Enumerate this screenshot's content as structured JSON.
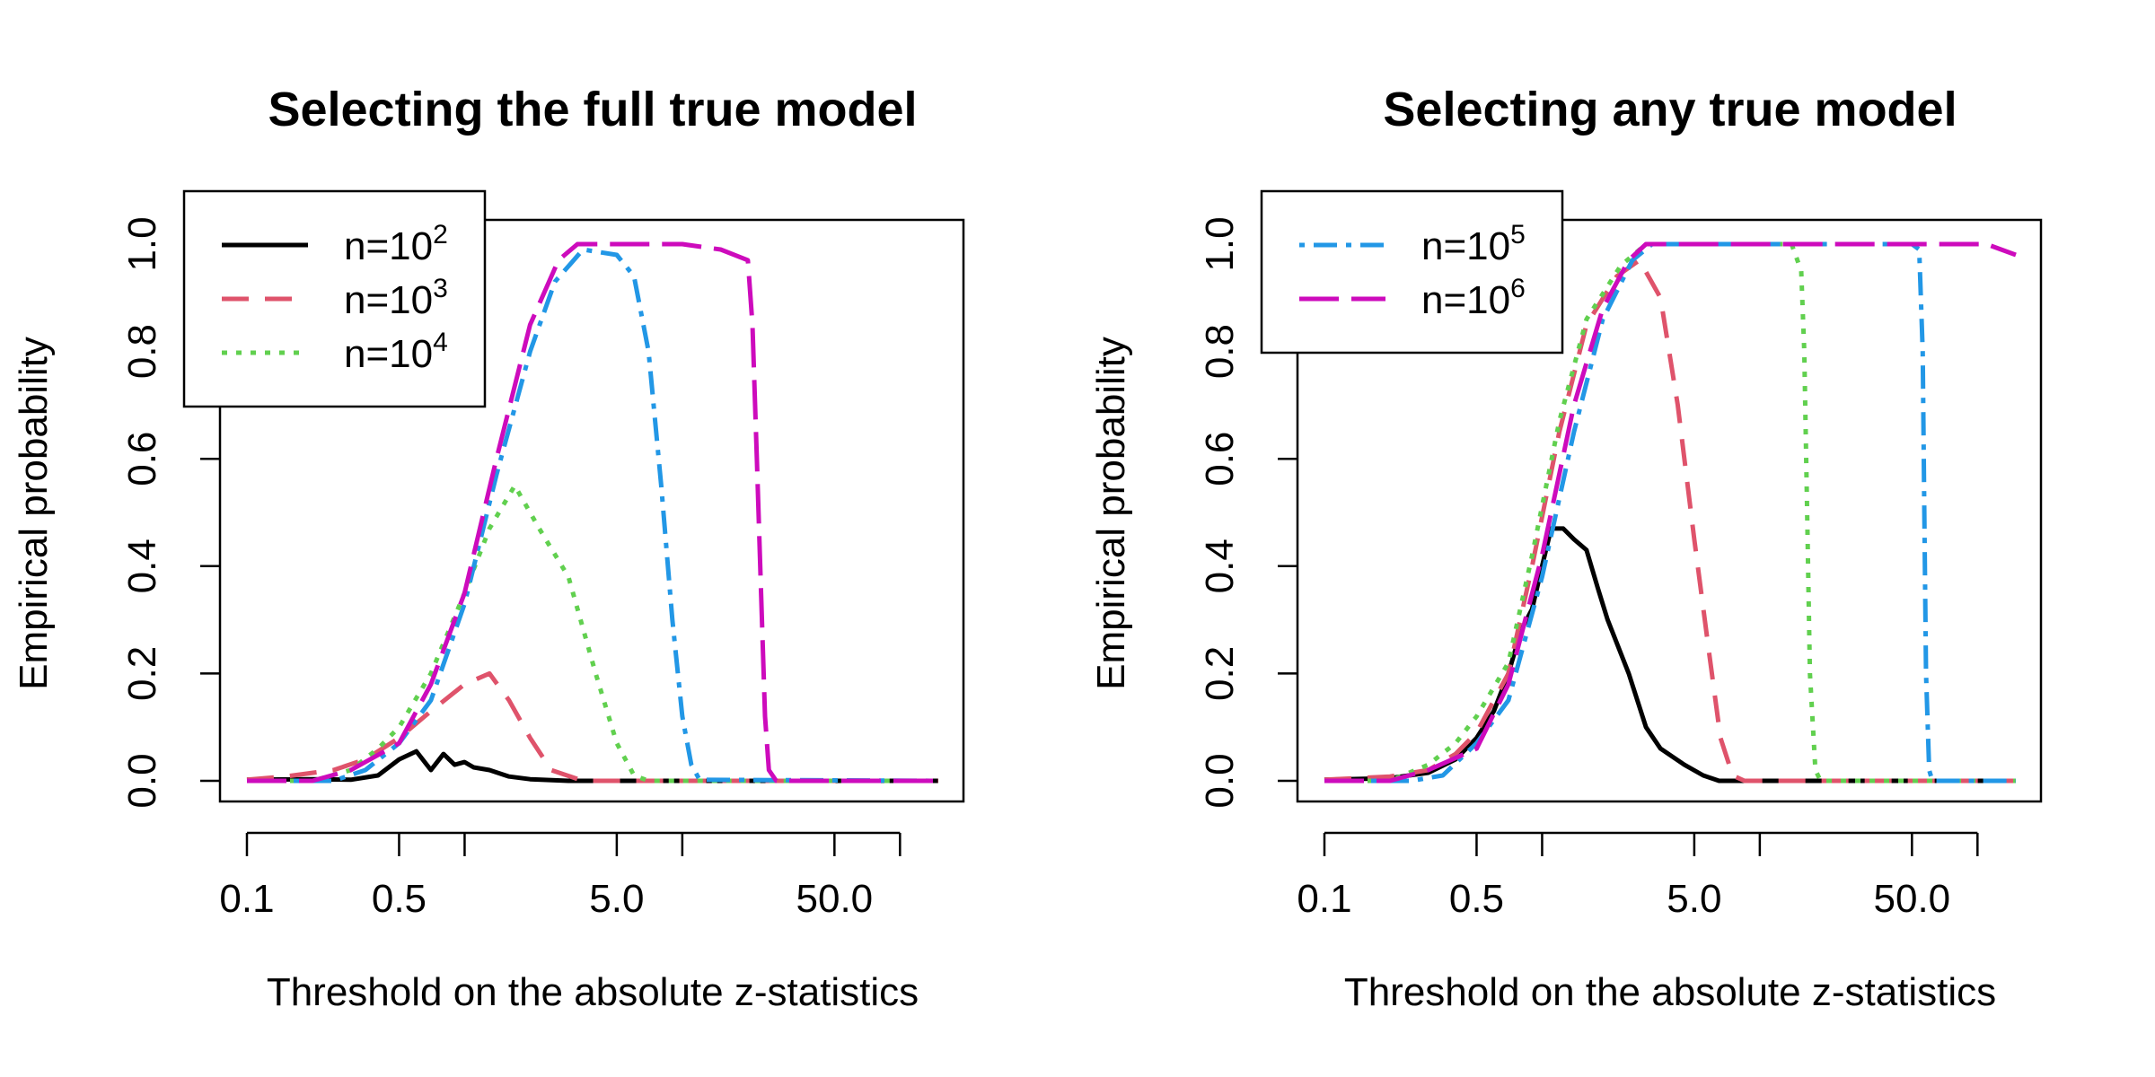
{
  "chart_data": [
    {
      "type": "line",
      "title": "Selecting the full true model",
      "xlabel": "Threshold on the absolute z-statistics",
      "ylabel": "Empirical probability",
      "xscale": "log",
      "xlim": [
        0.1,
        150
      ],
      "ylim": [
        0,
        1
      ],
      "xticks": [
        0.1,
        0.5,
        1,
        5,
        10,
        50,
        100
      ],
      "xtick_labels": [
        "0.1",
        "0.5",
        "",
        "5.0",
        "",
        "50.0",
        ""
      ],
      "yticks": [
        0,
        0.2,
        0.4,
        0.6,
        0.8,
        1.0
      ],
      "ytick_labels": [
        "0.0",
        "0.2",
        "0.4",
        "0.6",
        "0.8",
        "1.0"
      ],
      "legend": {
        "position": "top-left",
        "entries": [
          {
            "base": "n=10",
            "exp": "2",
            "series": "n=10^2"
          },
          {
            "base": "n=10",
            "exp": "3",
            "series": "n=10^3"
          },
          {
            "base": "n=10",
            "exp": "4",
            "series": "n=10^4"
          }
        ]
      },
      "series": [
        {
          "name": "n=10^2",
          "color": "#000000",
          "style": "solid",
          "points": [
            [
              0.1,
              0.002
            ],
            [
              0.2,
              0.003
            ],
            [
              0.3,
              0.002
            ],
            [
              0.4,
              0.01
            ],
            [
              0.5,
              0.04
            ],
            [
              0.6,
              0.055
            ],
            [
              0.7,
              0.02
            ],
            [
              0.8,
              0.05
            ],
            [
              0.9,
              0.03
            ],
            [
              1.0,
              0.035
            ],
            [
              1.1,
              0.025
            ],
            [
              1.3,
              0.02
            ],
            [
              1.6,
              0.008
            ],
            [
              2.0,
              0.003
            ],
            [
              3.0,
              0
            ],
            [
              150,
              0
            ]
          ]
        },
        {
          "name": "n=10^3",
          "color": "#DF536B",
          "style": "dashed",
          "points": [
            [
              0.1,
              0.002
            ],
            [
              0.15,
              0.008
            ],
            [
              0.25,
              0.02
            ],
            [
              0.35,
              0.04
            ],
            [
              0.5,
              0.08
            ],
            [
              0.7,
              0.13
            ],
            [
              1.0,
              0.18
            ],
            [
              1.3,
              0.2
            ],
            [
              1.6,
              0.15
            ],
            [
              2.0,
              0.08
            ],
            [
              2.5,
              0.02
            ],
            [
              3.5,
              0
            ],
            [
              150,
              0
            ]
          ]
        },
        {
          "name": "n=10^4",
          "color": "#61D04F",
          "style": "dotted",
          "points": [
            [
              0.1,
              0
            ],
            [
              0.2,
              0
            ],
            [
              0.3,
              0.02
            ],
            [
              0.4,
              0.06
            ],
            [
              0.5,
              0.1
            ],
            [
              0.7,
              0.2
            ],
            [
              1.0,
              0.35
            ],
            [
              1.3,
              0.47
            ],
            [
              1.7,
              0.55
            ],
            [
              2.2,
              0.47
            ],
            [
              3.0,
              0.38
            ],
            [
              4.0,
              0.2
            ],
            [
              5.0,
              0.07
            ],
            [
              6.0,
              0.01
            ],
            [
              7.0,
              0
            ],
            [
              150,
              0
            ]
          ]
        },
        {
          "name": "n=10^5",
          "color": "#2297E6",
          "style": "dotdash",
          "points": [
            [
              0.1,
              0
            ],
            [
              0.25,
              0
            ],
            [
              0.35,
              0.02
            ],
            [
              0.5,
              0.07
            ],
            [
              0.7,
              0.15
            ],
            [
              1.0,
              0.33
            ],
            [
              1.4,
              0.57
            ],
            [
              2.0,
              0.8
            ],
            [
              2.6,
              0.93
            ],
            [
              3.5,
              0.99
            ],
            [
              5.0,
              0.98
            ],
            [
              6.0,
              0.94
            ],
            [
              7.0,
              0.8
            ],
            [
              8.0,
              0.55
            ],
            [
              9.0,
              0.3
            ],
            [
              10.0,
              0.12
            ],
            [
              11.0,
              0.03
            ],
            [
              12.0,
              0.002
            ],
            [
              150,
              0
            ]
          ]
        },
        {
          "name": "n=10^6",
          "color": "#CD0BBC",
          "style": "longdash",
          "points": [
            [
              0.1,
              0
            ],
            [
              0.2,
              0
            ],
            [
              0.3,
              0.02
            ],
            [
              0.5,
              0.07
            ],
            [
              0.7,
              0.18
            ],
            [
              1.0,
              0.35
            ],
            [
              1.4,
              0.6
            ],
            [
              2.0,
              0.85
            ],
            [
              2.7,
              0.97
            ],
            [
              3.3,
              1.0
            ],
            [
              10,
              1.0
            ],
            [
              15,
              0.99
            ],
            [
              20,
              0.97
            ],
            [
              21,
              0.85
            ],
            [
              22,
              0.6
            ],
            [
              23,
              0.35
            ],
            [
              24,
              0.12
            ],
            [
              25,
              0.02
            ],
            [
              27,
              0
            ],
            [
              150,
              0
            ]
          ]
        }
      ]
    },
    {
      "type": "line",
      "title": "Selecting any true model",
      "xlabel": "Threshold on the absolute z-statistics",
      "ylabel": "Empirical probability",
      "xscale": "log",
      "xlim": [
        0.1,
        150
      ],
      "ylim": [
        0,
        1
      ],
      "xticks": [
        0.1,
        0.5,
        1,
        5,
        10,
        50,
        100
      ],
      "xtick_labels": [
        "0.1",
        "0.5",
        "",
        "5.0",
        "",
        "50.0",
        ""
      ],
      "yticks": [
        0,
        0.2,
        0.4,
        0.6,
        0.8,
        1.0
      ],
      "ytick_labels": [
        "0.0",
        "0.2",
        "0.4",
        "0.6",
        "0.8",
        "1.0"
      ],
      "legend": {
        "position": "top-left",
        "entries": [
          {
            "base": "n=10",
            "exp": "5",
            "series": "n=10^5"
          },
          {
            "base": "n=10",
            "exp": "6",
            "series": "n=10^6"
          }
        ]
      },
      "series": [
        {
          "name": "n=10^2",
          "color": "#000000",
          "style": "solid",
          "points": [
            [
              0.1,
              0.002
            ],
            [
              0.2,
              0.005
            ],
            [
              0.3,
              0.015
            ],
            [
              0.4,
              0.04
            ],
            [
              0.5,
              0.08
            ],
            [
              0.6,
              0.13
            ],
            [
              0.7,
              0.2
            ],
            [
              0.8,
              0.28
            ],
            [
              0.9,
              0.32
            ],
            [
              1.0,
              0.4
            ],
            [
              1.1,
              0.47
            ],
            [
              1.25,
              0.47
            ],
            [
              1.4,
              0.45
            ],
            [
              1.6,
              0.43
            ],
            [
              1.8,
              0.36
            ],
            [
              2.0,
              0.3
            ],
            [
              2.5,
              0.2
            ],
            [
              3.0,
              0.1
            ],
            [
              3.5,
              0.06
            ],
            [
              4.5,
              0.03
            ],
            [
              5.5,
              0.01
            ],
            [
              6.5,
              0
            ],
            [
              150,
              0
            ]
          ]
        },
        {
          "name": "n=10^3",
          "color": "#DF536B",
          "style": "dashed",
          "points": [
            [
              0.1,
              0.002
            ],
            [
              0.2,
              0.008
            ],
            [
              0.3,
              0.02
            ],
            [
              0.4,
              0.05
            ],
            [
              0.5,
              0.09
            ],
            [
              0.7,
              0.2
            ],
            [
              0.9,
              0.4
            ],
            [
              1.2,
              0.65
            ],
            [
              1.6,
              0.85
            ],
            [
              2.2,
              0.94
            ],
            [
              2.8,
              0.97
            ],
            [
              3.5,
              0.9
            ],
            [
              4.2,
              0.7
            ],
            [
              5.0,
              0.45
            ],
            [
              5.8,
              0.25
            ],
            [
              6.6,
              0.08
            ],
            [
              7.5,
              0.01
            ],
            [
              8.5,
              0
            ],
            [
              150,
              0
            ]
          ]
        },
        {
          "name": "n=10^4",
          "color": "#61D04F",
          "style": "dotted",
          "points": [
            [
              0.1,
              0
            ],
            [
              0.2,
              0
            ],
            [
              0.3,
              0.03
            ],
            [
              0.4,
              0.07
            ],
            [
              0.5,
              0.12
            ],
            [
              0.7,
              0.22
            ],
            [
              0.9,
              0.42
            ],
            [
              1.2,
              0.67
            ],
            [
              1.6,
              0.86
            ],
            [
              2.3,
              0.96
            ],
            [
              3.0,
              1.0
            ],
            [
              14,
              1.0
            ],
            [
              15.5,
              0.95
            ],
            [
              16,
              0.8
            ],
            [
              16.5,
              0.5
            ],
            [
              17,
              0.2
            ],
            [
              18,
              0.02
            ],
            [
              19,
              0
            ],
            [
              150,
              0
            ]
          ]
        },
        {
          "name": "n=10^5",
          "color": "#2297E6",
          "style": "dotdash",
          "points": [
            [
              0.1,
              0
            ],
            [
              0.25,
              0
            ],
            [
              0.35,
              0.01
            ],
            [
              0.5,
              0.07
            ],
            [
              0.7,
              0.15
            ],
            [
              1.0,
              0.38
            ],
            [
              1.4,
              0.65
            ],
            [
              1.9,
              0.86
            ],
            [
              2.6,
              0.97
            ],
            [
              3.2,
              1.0
            ],
            [
              50,
              1.0
            ],
            [
              54,
              0.99
            ],
            [
              56,
              0.8
            ],
            [
              57,
              0.5
            ],
            [
              58,
              0.2
            ],
            [
              60,
              0.02
            ],
            [
              62,
              0
            ],
            [
              150,
              0
            ]
          ]
        },
        {
          "name": "n=10^6",
          "color": "#CD0BBC",
          "style": "longdash",
          "points": [
            [
              0.1,
              0
            ],
            [
              0.2,
              0
            ],
            [
              0.3,
              0.02
            ],
            [
              0.5,
              0.06
            ],
            [
              0.7,
              0.18
            ],
            [
              1.0,
              0.42
            ],
            [
              1.4,
              0.7
            ],
            [
              1.9,
              0.88
            ],
            [
              2.5,
              0.97
            ],
            [
              3.0,
              1.0
            ],
            [
              110,
              1.0
            ],
            [
              150,
              0.98
            ]
          ]
        }
      ]
    }
  ]
}
